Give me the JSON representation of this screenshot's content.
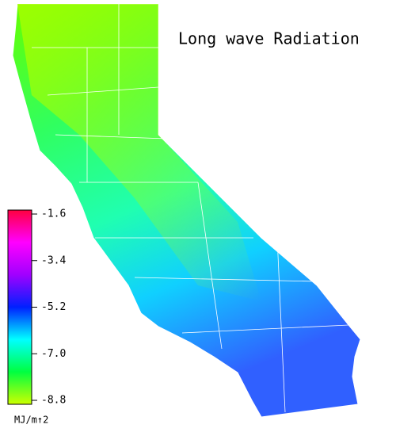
{
  "title": "Long wave Radiation",
  "colorbar": {
    "lim": [
      -8.8,
      -1.6
    ],
    "ticks": [
      -1.6,
      -3.4,
      -5.2,
      {
        "value": -7,
        "label": "-7.0"
      },
      -8.8
    ],
    "colors": [
      "#ccff00",
      "#00ff40",
      "#00ffff",
      "#0020ff",
      "#a000ff",
      "#ff00ff",
      "#ff0040"
    ],
    "unit": "MJ/m↑2"
  }
}
